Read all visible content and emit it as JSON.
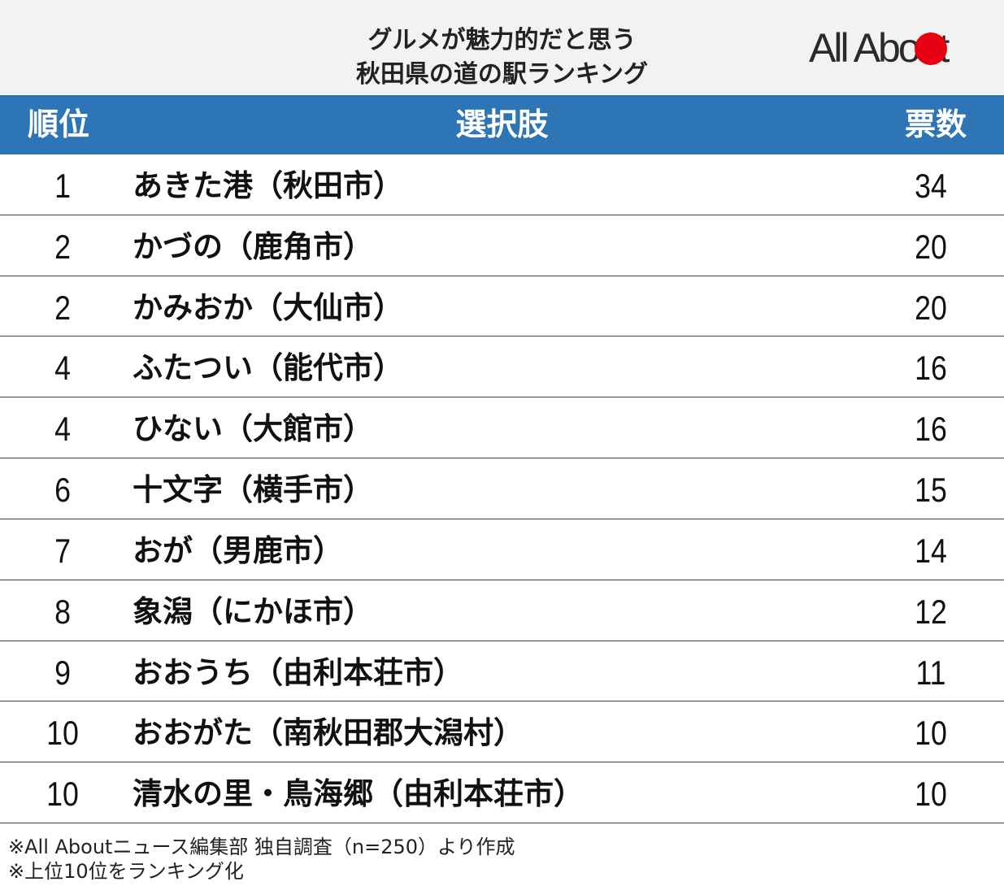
{
  "header": {
    "title_lines": [
      "グルメが魅力的だと思う",
      "秋田県の道の駅ランキング"
    ],
    "logo": "All About"
  },
  "table": {
    "columns": [
      "順位",
      "選択肢",
      "票数"
    ],
    "rows": [
      [
        1,
        "あきた港（秋田市）",
        34
      ],
      [
        2,
        "かづの（鹿角市）",
        20
      ],
      [
        2,
        "かみおか（大仙市）",
        20
      ],
      [
        4,
        "ふたつい（能代市）",
        16
      ],
      [
        4,
        "ひない（大館市）",
        16
      ],
      [
        6,
        "十文字（横手市）",
        15
      ],
      [
        7,
        "おが（男鹿市）",
        14
      ],
      [
        8,
        "象潟（にかほ市）",
        12
      ],
      [
        9,
        "おおうち（由利本荘市）",
        11
      ],
      [
        10,
        "おおがた（南秋田郡大潟村）",
        10
      ],
      [
        10,
        "清水の里・鳥海郷（由利本荘市）",
        10
      ]
    ]
  },
  "notes": [
    "※All Aboutニュース編集部 独自調査（n=250）より作成",
    "※上位10位をランキング化"
  ]
}
